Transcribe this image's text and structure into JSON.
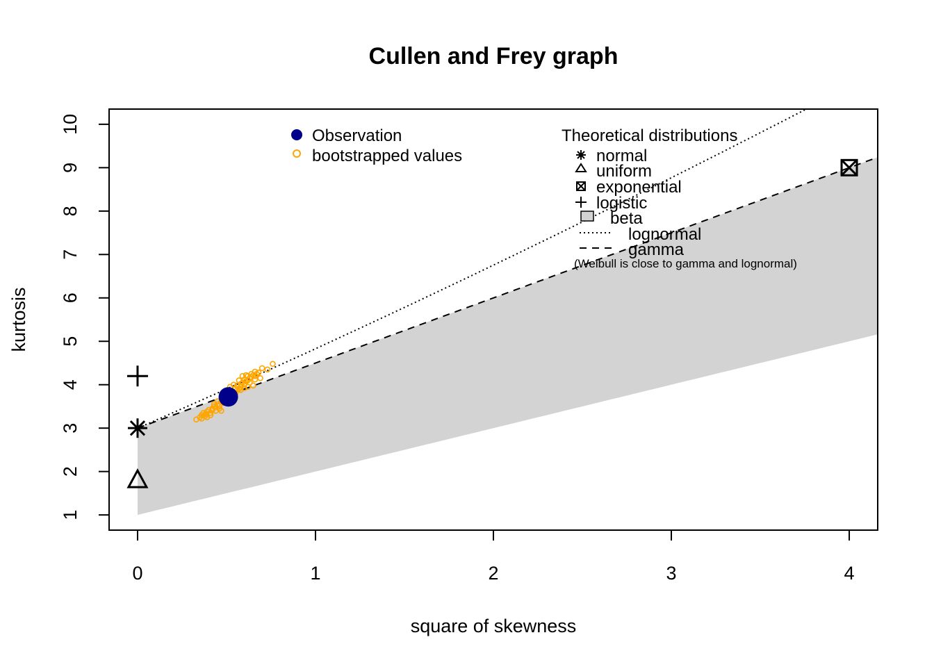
{
  "chart_data": {
    "type": "scatter",
    "title": "Cullen and Frey graph",
    "xlabel": "square of skewness",
    "ylabel": "kurtosis",
    "xlim": [
      -0.16,
      4.16
    ],
    "ylim": [
      10.35,
      0.65
    ],
    "y_axis_reversed": true,
    "x_ticks": [
      0,
      1,
      2,
      3,
      4
    ],
    "y_ticks": [
      1,
      2,
      3,
      4,
      5,
      6,
      7,
      8,
      9,
      10
    ],
    "grid": false,
    "observation": {
      "name": "Observation",
      "x": 0.51,
      "y": 3.72,
      "color": "#00008B"
    },
    "bootstrapped": {
      "name": "bootstrapped values",
      "color": "#FFA500",
      "points": [
        [
          0.33,
          3.2
        ],
        [
          0.35,
          3.25
        ],
        [
          0.36,
          3.3
        ],
        [
          0.38,
          3.28
        ],
        [
          0.37,
          3.35
        ],
        [
          0.39,
          3.38
        ],
        [
          0.4,
          3.42
        ],
        [
          0.41,
          3.35
        ],
        [
          0.42,
          3.45
        ],
        [
          0.43,
          3.5
        ],
        [
          0.44,
          3.48
        ],
        [
          0.45,
          3.55
        ],
        [
          0.46,
          3.52
        ],
        [
          0.47,
          3.6
        ],
        [
          0.48,
          3.58
        ],
        [
          0.46,
          3.45
        ],
        [
          0.44,
          3.4
        ],
        [
          0.41,
          3.3
        ],
        [
          0.39,
          3.25
        ],
        [
          0.47,
          3.4
        ],
        [
          0.49,
          3.65
        ],
        [
          0.5,
          3.7
        ],
        [
          0.52,
          3.72
        ],
        [
          0.53,
          3.78
        ],
        [
          0.54,
          3.82
        ],
        [
          0.55,
          3.8
        ],
        [
          0.56,
          3.88
        ],
        [
          0.57,
          3.9
        ],
        [
          0.58,
          3.95
        ],
        [
          0.55,
          3.92
        ],
        [
          0.53,
          3.85
        ],
        [
          0.56,
          3.98
        ],
        [
          0.58,
          4.02
        ],
        [
          0.59,
          4.05
        ],
        [
          0.6,
          4.0
        ],
        [
          0.61,
          4.08
        ],
        [
          0.62,
          4.1
        ],
        [
          0.6,
          4.12
        ],
        [
          0.63,
          4.15
        ],
        [
          0.64,
          4.18
        ],
        [
          0.62,
          4.2
        ],
        [
          0.65,
          4.22
        ],
        [
          0.66,
          4.2
        ],
        [
          0.67,
          4.25
        ],
        [
          0.68,
          4.28
        ],
        [
          0.64,
          4.25
        ],
        [
          0.66,
          4.3
        ],
        [
          0.61,
          4.22
        ],
        [
          0.59,
          4.2
        ],
        [
          0.57,
          4.1
        ],
        [
          0.58,
          3.88
        ],
        [
          0.6,
          3.92
        ],
        [
          0.62,
          3.95
        ],
        [
          0.65,
          3.98
        ],
        [
          0.63,
          4.05
        ],
        [
          0.66,
          4.12
        ],
        [
          0.69,
          4.15
        ],
        [
          0.7,
          4.38
        ],
        [
          0.73,
          4.35
        ],
        [
          0.76,
          4.48
        ],
        [
          0.52,
          3.95
        ],
        [
          0.54,
          4.0
        ],
        [
          0.5,
          3.85
        ],
        [
          0.48,
          3.75
        ],
        [
          0.51,
          3.62
        ],
        [
          0.43,
          3.55
        ],
        [
          0.45,
          3.62
        ],
        [
          0.42,
          3.42
        ],
        [
          0.38,
          3.32
        ],
        [
          0.36,
          3.22
        ]
      ]
    },
    "theoretical": {
      "heading": "Theoretical distributions",
      "normal": {
        "name": "normal",
        "x": 0,
        "y": 3
      },
      "uniform": {
        "name": "uniform",
        "x": 0,
        "y": 1.8
      },
      "exponential": {
        "name": "exponential",
        "x": 4,
        "y": 9
      },
      "logistic": {
        "name": "logistic",
        "x": 0,
        "y": 4.2
      },
      "beta": {
        "name": "beta",
        "color": "#D3D3D3"
      },
      "lognormal": {
        "name": "lognormal"
      },
      "gamma": {
        "name": "gamma"
      },
      "note": "(Weibull is close to gamma and lognormal)"
    }
  }
}
